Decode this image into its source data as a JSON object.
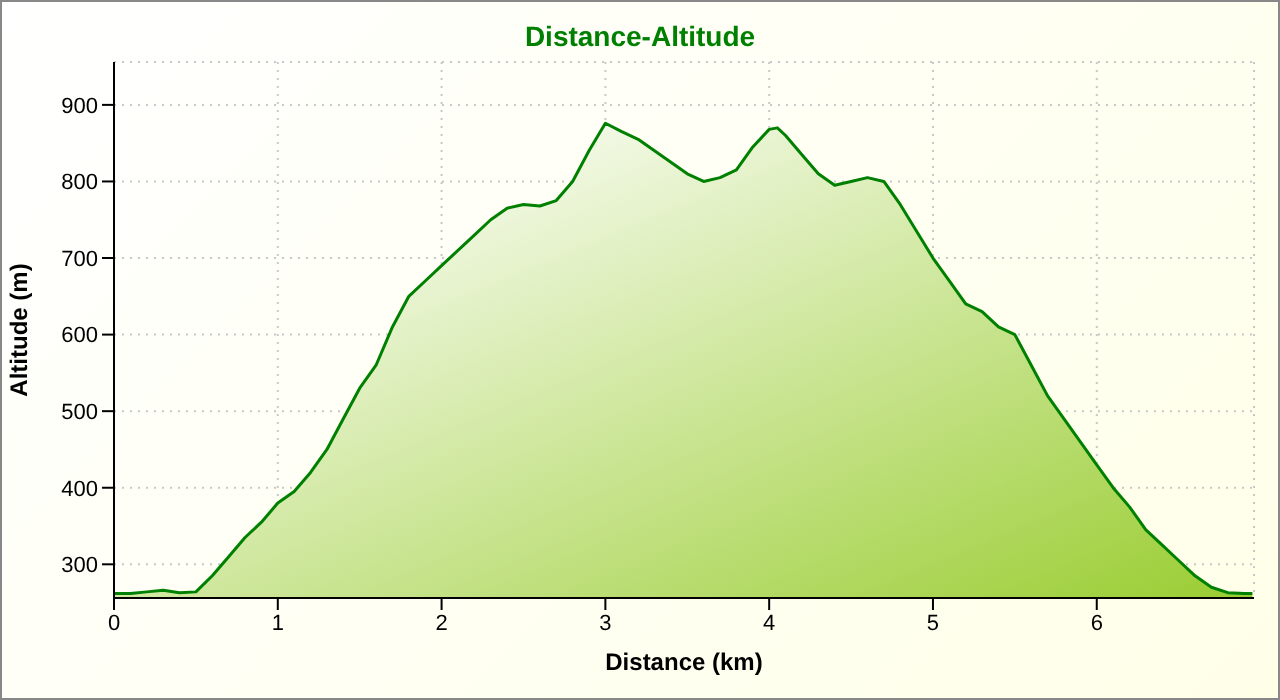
{
  "chart_data": {
    "type": "area",
    "title": "Distance-Altitude",
    "xlabel": "Distance (km)",
    "ylabel": "Altitude (m)",
    "x": [
      0,
      0.1,
      0.2,
      0.3,
      0.4,
      0.5,
      0.6,
      0.7,
      0.8,
      0.9,
      1.0,
      1.1,
      1.2,
      1.3,
      1.4,
      1.5,
      1.6,
      1.7,
      1.8,
      1.9,
      2.0,
      2.1,
      2.2,
      2.3,
      2.4,
      2.5,
      2.6,
      2.7,
      2.8,
      2.9,
      3.0,
      3.1,
      3.2,
      3.3,
      3.4,
      3.5,
      3.6,
      3.7,
      3.8,
      3.9,
      4.0,
      4.05,
      4.1,
      4.2,
      4.3,
      4.4,
      4.5,
      4.6,
      4.7,
      4.8,
      4.9,
      5.0,
      5.1,
      5.2,
      5.3,
      5.4,
      5.5,
      5.6,
      5.7,
      5.8,
      5.9,
      6.0,
      6.1,
      6.2,
      6.3,
      6.4,
      6.5,
      6.6,
      6.7,
      6.8,
      6.9,
      6.95
    ],
    "series": [
      {
        "color": "#008000",
        "values": [
          262,
          262,
          264,
          266,
          263,
          264,
          285,
          310,
          335,
          355,
          380,
          395,
          420,
          450,
          490,
          530,
          560,
          610,
          650,
          670,
          690,
          710,
          730,
          750,
          765,
          770,
          768,
          775,
          800,
          840,
          876,
          865,
          855,
          840,
          825,
          810,
          800,
          805,
          815,
          845,
          868,
          870,
          860,
          835,
          810,
          795,
          800,
          805,
          800,
          770,
          735,
          700,
          670,
          640,
          630,
          610,
          600,
          560,
          520,
          490,
          460,
          430,
          400,
          375,
          345,
          325,
          305,
          285,
          270,
          263,
          262,
          262
        ]
      }
    ],
    "ylim": [
      256,
      956
    ],
    "yticks": [
      300,
      400,
      500,
      600,
      700,
      800,
      900
    ],
    "xlim": [
      0,
      6.96
    ],
    "xticks": [
      0,
      1,
      2,
      3,
      4,
      5,
      6
    ],
    "grid": true
  }
}
